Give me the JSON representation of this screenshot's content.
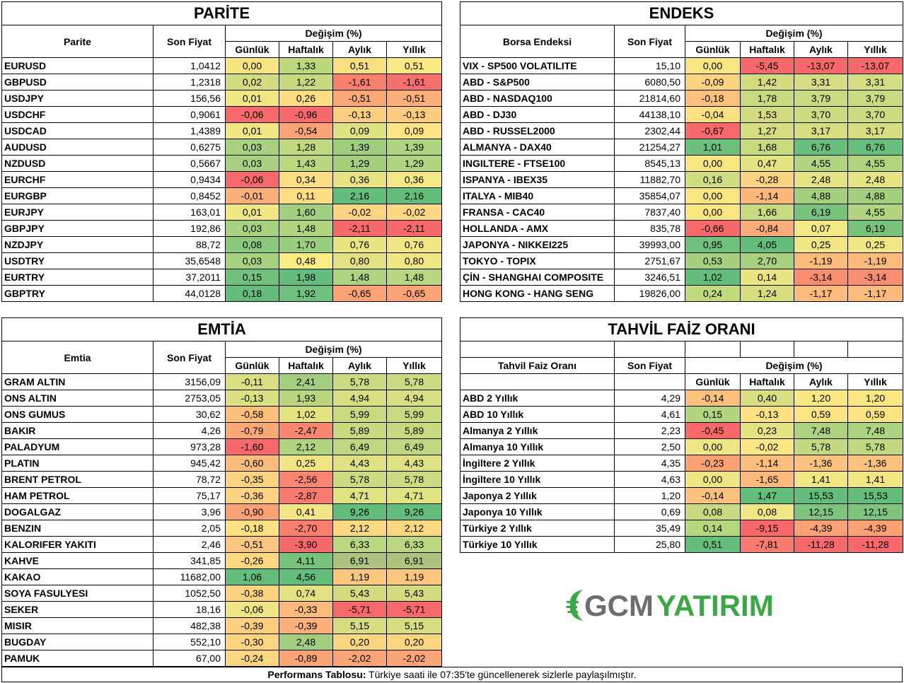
{
  "parite": {
    "title": "PARİTE",
    "col_name": "Parite",
    "col_price": "Son Fiyat",
    "col_change": "Değişim (%)",
    "sub": [
      "Günlük",
      "Haftalık",
      "Aylık",
      "Yıllık"
    ],
    "rows": [
      [
        "EURUSD",
        "1,0412",
        "0,00",
        "1,33",
        "0,51",
        "0,51"
      ],
      [
        "GBPUSD",
        "1,2318",
        "0,02",
        "1,22",
        "-1,61",
        "-1,61"
      ],
      [
        "USDJPY",
        "156,56",
        "0,01",
        "0,26",
        "-0,51",
        "-0,51"
      ],
      [
        "USDCHF",
        "0,9061",
        "-0,06",
        "-0,96",
        "-0,13",
        "-0,13"
      ],
      [
        "USDCAD",
        "1,4389",
        "0,01",
        "-0,54",
        "0,09",
        "0,09"
      ],
      [
        "AUDUSD",
        "0,6275",
        "0,03",
        "1,28",
        "1,39",
        "1,39"
      ],
      [
        "NZDUSD",
        "0,5667",
        "0,03",
        "1,43",
        "1,29",
        "1,29"
      ],
      [
        "EURCHF",
        "0,9434",
        "-0,06",
        "0,34",
        "0,36",
        "0,36"
      ],
      [
        "EURGBP",
        "0,8452",
        "-0,01",
        "0,11",
        "2,16",
        "2,16"
      ],
      [
        "EURJPY",
        "163,01",
        "0,01",
        "1,60",
        "-0,02",
        "-0,02"
      ],
      [
        "GBPJPY",
        "192,86",
        "0,03",
        "1,48",
        "-2,11",
        "-2,11"
      ],
      [
        "NZDJPY",
        "88,72",
        "0,08",
        "1,70",
        "0,76",
        "0,76"
      ],
      [
        "USDTRY",
        "35,6548",
        "0,03",
        "0,48",
        "0,80",
        "0,80"
      ],
      [
        "EURTRY",
        "37,2011",
        "0,15",
        "1,98",
        "1,48",
        "1,48"
      ],
      [
        "GBPTRY",
        "44,0128",
        "0,18",
        "1,92",
        "-0,65",
        "-0,65"
      ]
    ],
    "colors": [
      [
        "#f9e480",
        "#bcd87c",
        "#f9e17f",
        "#fbe983"
      ],
      [
        "#d1dd7e",
        "#c5da7d",
        "#f8806d",
        "#f8706b"
      ],
      [
        "#f0e682",
        "#fedd82",
        "#fba877",
        "#fbb079"
      ],
      [
        "#f8696b",
        "#f8696b",
        "#fcce7f",
        "#fccb7e"
      ],
      [
        "#f0e682",
        "#fba276",
        "#dfe282",
        "#fee582"
      ],
      [
        "#a8d27f",
        "#c1d97d",
        "#9fcf7e",
        "#add47f"
      ],
      [
        "#a8d27f",
        "#b8d77e",
        "#a4d07e",
        "#b2d57f"
      ],
      [
        "#f8696b",
        "#fede82",
        "#e6e483",
        "#f5e884"
      ],
      [
        "#fcb079",
        "#fede82",
        "#63be7b",
        "#63be7b"
      ],
      [
        "#f0e682",
        "#a2d07e",
        "#fdd580",
        "#fdd781"
      ],
      [
        "#a8d27f",
        "#b1d47e",
        "#f8696b",
        "#f8696b"
      ],
      [
        "#8bc97e",
        "#9acd7e",
        "#e9e582",
        "#f2e784"
      ],
      [
        "#a8d27f",
        "#fcec84",
        "#e0e283",
        "#eee784"
      ],
      [
        "#70c17c",
        "#63be7b",
        "#aed47f",
        "#b9d77f"
      ],
      [
        "#63be7b",
        "#6fc07c",
        "#fba375",
        "#fca476"
      ]
    ]
  },
  "endeks": {
    "title": "ENDEKS",
    "col_name": "Borsa Endeksi",
    "col_price": "Son Fiyat",
    "col_change": "Değişim (%)",
    "sub": [
      "Günlük",
      "Haftalık",
      "Aylık",
      "Yıllık"
    ],
    "rows": [
      [
        "VIX  - SP500 VOLATILITE",
        "15,10",
        "0,00",
        "-5,45",
        "-13,07",
        "-13,07"
      ],
      [
        "ABD - S&P500",
        "6080,50",
        "-0,09",
        "1,42",
        "3,31",
        "3,31"
      ],
      [
        "ABD - NASDAQ100",
        "21814,60",
        "-0,18",
        "1,78",
        "3,79",
        "3,79"
      ],
      [
        "ABD - DJ30",
        "44138,10",
        "-0,04",
        "1,53",
        "3,70",
        "3,70"
      ],
      [
        "ABD - RUSSEL2000",
        "2302,44",
        "-0,67",
        "1,27",
        "3,17",
        "3,17"
      ],
      [
        "ALMANYA - DAX40",
        "21254,27",
        "1,01",
        "1,68",
        "6,76",
        "6,76"
      ],
      [
        "INGILTERE - FTSE100",
        "8545,13",
        "0,00",
        "0,47",
        "4,55",
        "4,55"
      ],
      [
        "ISPANYA - IBEX35",
        "11882,70",
        "0,16",
        "-0,28",
        "2,48",
        "2,48"
      ],
      [
        "ITALYA - MIB40",
        "35854,07",
        "0,00",
        "-1,14",
        "4,88",
        "4,88"
      ],
      [
        "FRANSA - CAC40",
        "7837,40",
        "0,00",
        "1,66",
        "6,19",
        "4,55"
      ],
      [
        "HOLLANDA - AMX",
        "835,78",
        "-0,66",
        "-0,84",
        "0,07",
        "6,19"
      ],
      [
        "JAPONYA - NIKKEI225",
        "39993,00",
        "0,95",
        "4,05",
        "0,25",
        "0,25"
      ],
      [
        "TOKYO - TOPIX",
        "2751,67",
        "0,53",
        "2,70",
        "-1,19",
        "-1,19"
      ],
      [
        "ÇİN - SHANGHAI COMPOSITE",
        "3246,51",
        "1,02",
        "0,14",
        "-3,14",
        "-3,14"
      ],
      [
        "HONG KONG - HANG SENG",
        "19826,00",
        "0,24",
        "1,24",
        "-1,17",
        "-1,17"
      ]
    ],
    "colors": [
      [
        "#f9e680",
        "#f8696b",
        "#f8696b",
        "#f8696b"
      ],
      [
        "#fcd37f",
        "#d3dd80",
        "#d2de81",
        "#d2de81"
      ],
      [
        "#fcc27b",
        "#c8da7e",
        "#c9db80",
        "#c9db80"
      ],
      [
        "#fde082",
        "#d0dc7f",
        "#cbdb80",
        "#cbdb80"
      ],
      [
        "#f8696b",
        "#d5dd80",
        "#d5de81",
        "#d5de81"
      ],
      [
        "#6bc07c",
        "#c7da7e",
        "#68bf7b",
        "#68bf7b"
      ],
      [
        "#f9e680",
        "#e4e382",
        "#b0d47f",
        "#b0d47f"
      ],
      [
        "#d1dd7f",
        "#fdd37f",
        "#e4e483",
        "#e4e483"
      ],
      [
        "#f9e680",
        "#fcb77a",
        "#a4d07e",
        "#a4d07e"
      ],
      [
        "#f9e680",
        "#c8da7e",
        "#78c37c",
        "#b0d47f"
      ],
      [
        "#f8696b",
        "#fbad78",
        "#f2e884",
        "#78c37c"
      ],
      [
        "#70c17c",
        "#63be7b",
        "#f0e784",
        "#f0e784"
      ],
      [
        "#a6d07e",
        "#a8d07e",
        "#fcba7b",
        "#fcba7b"
      ],
      [
        "#63be7b",
        "#ebe483",
        "#fa8c70",
        "#fa8c70"
      ],
      [
        "#c3d97e",
        "#d8de80",
        "#fcbb7b",
        "#fcbb7b"
      ]
    ]
  },
  "emtia": {
    "title": "EMTİA",
    "col_name": "Emtia",
    "col_price": "Son Fiyat",
    "col_change": "Değişim (%)",
    "sub": [
      "Günlük",
      "Haftalık",
      "Aylık",
      "Yıllık"
    ],
    "rows": [
      [
        "GRAM ALTIN",
        "3156,09",
        "-0,11",
        "2,41",
        "5,78",
        "5,78"
      ],
      [
        "ONS ALTIN",
        "2753,05",
        "-0,13",
        "1,93",
        "4,94",
        "4,94"
      ],
      [
        "ONS GUMUS",
        "30,62",
        "-0,58",
        "1,02",
        "5,99",
        "5,99"
      ],
      [
        "BAKIR",
        "4,26",
        "-0,79",
        "-2,47",
        "5,89",
        "5,89"
      ],
      [
        "PALADYUM",
        "973,28",
        "-1,60",
        "2,12",
        "6,49",
        "6,49"
      ],
      [
        "PLATIN",
        "945,42",
        "-0,60",
        "0,25",
        "4,43",
        "4,43"
      ],
      [
        "BRENT PETROL",
        "78,72",
        "-0,35",
        "-2,56",
        "5,78",
        "5,78"
      ],
      [
        "HAM PETROL",
        "75,17",
        "-0,36",
        "-2,87",
        "4,71",
        "4,71"
      ],
      [
        "DOGALGAZ",
        "3,96",
        "-0,90",
        "0,41",
        "9,26",
        "9,26"
      ],
      [
        "BENZIN",
        "2,05",
        "-0,18",
        "-2,70",
        "2,12",
        "2,12"
      ],
      [
        "KALORIFER YAKITI",
        "2,46",
        "-0,51",
        "-3,90",
        "6,33",
        "6,33"
      ],
      [
        "KAHVE",
        "341,85",
        "-0,26",
        "4,11",
        "6,91",
        "6,91"
      ],
      [
        "KAKAO",
        "11682,00",
        "1,06",
        "4,56",
        "1,19",
        "1,19"
      ],
      [
        "SOYA FASULYESI",
        "1052,50",
        "-0,38",
        "0,74",
        "5,43",
        "5,43"
      ],
      [
        "SEKER",
        "18,16",
        "-0,06",
        "-0,33",
        "-5,71",
        "-5,71"
      ],
      [
        "MISIR",
        "482,38",
        "-0,39",
        "-0,39",
        "5,15",
        "5,15"
      ],
      [
        "BUGDAY",
        "552,10",
        "-0,30",
        "2,48",
        "0,20",
        "0,20"
      ],
      [
        "PAMUK",
        "67,00",
        "-0,24",
        "-0,89",
        "-2,02",
        "-2,02"
      ]
    ],
    "colors": [
      [
        "#d8df81",
        "#a2cf7e",
        "#cbdb80",
        "#cbdb80"
      ],
      [
        "#dbe081",
        "#b9d67e",
        "#d8de81",
        "#d8de81"
      ],
      [
        "#fcc07b",
        "#e4e382",
        "#c6da7f",
        "#c6da7f"
      ],
      [
        "#fba976",
        "#fa8870",
        "#c8da7f",
        "#c8da7f"
      ],
      [
        "#f8696b",
        "#b0d37e",
        "#bdd87f",
        "#bdd87f"
      ],
      [
        "#fcbc7b",
        "#f0e582",
        "#dfe182",
        "#dfe182"
      ],
      [
        "#fdd380",
        "#fa8570",
        "#cbdb80",
        "#cbdb80"
      ],
      [
        "#fdd280",
        "#f97a6e",
        "#e1e282",
        "#e1e282"
      ],
      [
        "#fba274",
        "#f3e683",
        "#63be7b",
        "#63be7b"
      ],
      [
        "#fedf82",
        "#fa7f6f",
        "#fdd881",
        "#fdd881"
      ],
      [
        "#fcc67d",
        "#f8696b",
        "#b9d77f",
        "#b9d77f"
      ],
      [
        "#fdd880",
        "#78c37c",
        "#adc47f",
        "#adc47f"
      ],
      [
        "#63be7b",
        "#63be7b",
        "#fcc67d",
        "#fcc67d"
      ],
      [
        "#fdd37f",
        "#e2e282",
        "#d2dd80",
        "#d2dd80"
      ],
      [
        "#f1e583",
        "#fcb97a",
        "#f8696b",
        "#f8696b"
      ],
      [
        "#fdcf7f",
        "#fcb07a",
        "#d6de81",
        "#d6de81"
      ],
      [
        "#fdd480",
        "#a1cf7e",
        "#fbd680",
        "#fbd680"
      ],
      [
        "#fdd780",
        "#fba475",
        "#fba475",
        "#fba475"
      ]
    ]
  },
  "tahvil": {
    "title": "TAHVİL FAİZ ORANI",
    "col_name": "Tahvil Faiz Oranı",
    "col_price": "Son Fiyat",
    "col_change": "Değişim (%)",
    "sub": [
      "Günlük",
      "Haftalık",
      "Aylık",
      "Yıllık"
    ],
    "rows": [
      [
        "ABD 2 Yıllık",
        "4,29",
        "-0,14",
        "0,40",
        "1,20",
        "1,20"
      ],
      [
        "ABD 10 Yıllık",
        "4,61",
        "0,15",
        "-0,13",
        "0,59",
        "0,59"
      ],
      [
        "Almanya 2 Yıllık",
        "2,23",
        "-0,45",
        "0,23",
        "7,48",
        "7,48"
      ],
      [
        "Almanya 10 Yıllık",
        "2,50",
        "0,00",
        "-0,02",
        "5,78",
        "5,78"
      ],
      [
        "İngiltere 2 Yıllık",
        "4,35",
        "-0,23",
        "-1,14",
        "-1,36",
        "-1,36"
      ],
      [
        "İngiltere 10 Yıllık",
        "4,63",
        "0,00",
        "-1,65",
        "1,41",
        "1,41"
      ],
      [
        "Japonya 2 Yıllık",
        "1,20",
        "-0,14",
        "1,47",
        "15,53",
        "15,53"
      ],
      [
        "Japonya 10 Yıllık",
        "0,69",
        "0,08",
        "0,08",
        "12,15",
        "12,15"
      ],
      [
        "Türkiye 2 Yıllık",
        "35,49",
        "0,14",
        "-9,15",
        "-4,39",
        "-4,39"
      ],
      [
        "Türkiye 10 Yıllık",
        "25,80",
        "0,51",
        "-7,81",
        "-11,28",
        "-11,28"
      ]
    ],
    "colors": [
      [
        "#fcc17c",
        "#d9df81",
        "#fbe883",
        "#fbe883"
      ],
      [
        "#b3d57f",
        "#fde182",
        "#fde483",
        "#fde483"
      ],
      [
        "#f8696b",
        "#e4e382",
        "#aed37f",
        "#aed37f"
      ],
      [
        "#efe583",
        "#fde783",
        "#c2d97f",
        "#c2d97f"
      ],
      [
        "#fba275",
        "#fdc07c",
        "#fdc27c",
        "#fdc27c"
      ],
      [
        "#efe583",
        "#fdba7b",
        "#f3e784",
        "#f3e784"
      ],
      [
        "#fcc17c",
        "#63be7b",
        "#63be7b",
        "#63be7b"
      ],
      [
        "#c7da7f",
        "#f0e683",
        "#7dc47c",
        "#7dc47c"
      ],
      [
        "#b6d67e",
        "#f8696b",
        "#fca174",
        "#fca174"
      ],
      [
        "#63be7b",
        "#f97a6e",
        "#f8696b",
        "#f8696b"
      ]
    ]
  },
  "logo": {
    "text_gcm": "GCM",
    "text_yatirim": "YATIRIM",
    "color_gray": "#6d6e71",
    "color_green": "#3aa845"
  },
  "footer": {
    "bold": "Performans Tablosu:",
    "text": " Türkiye saati ile 07:35'te güncellenerek sizlerle paylaşılmıştır."
  }
}
